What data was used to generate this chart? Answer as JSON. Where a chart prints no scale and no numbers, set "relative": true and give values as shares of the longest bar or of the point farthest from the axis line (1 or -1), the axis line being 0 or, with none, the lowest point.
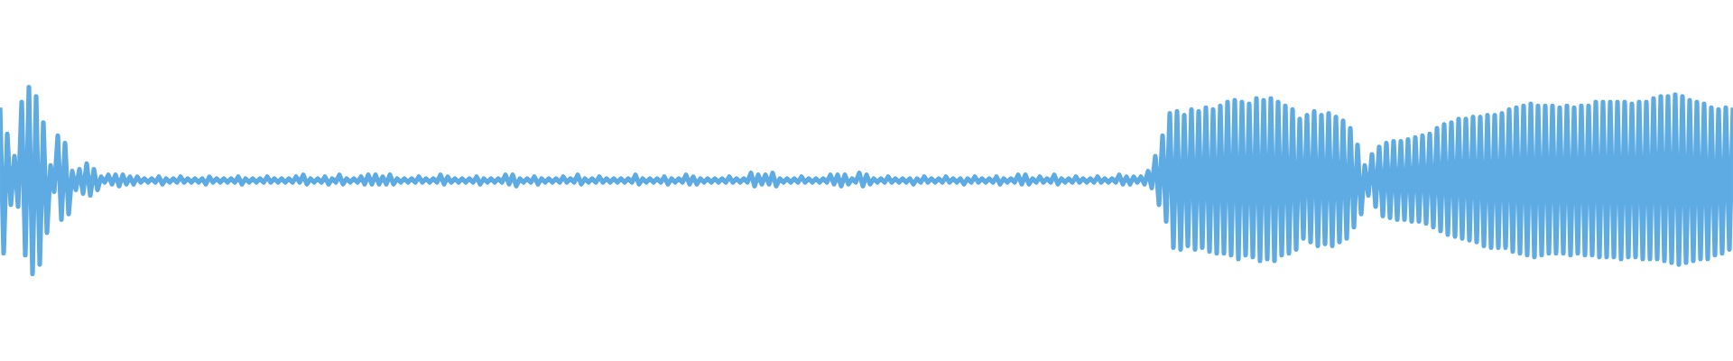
{
  "chart_data": {
    "type": "line",
    "relative": true,
    "categories": [
      null,
      null,
      null,
      null,
      null,
      null,
      null,
      null,
      null,
      null,
      null,
      null,
      null,
      null,
      null,
      null,
      null,
      null,
      null,
      null,
      null,
      null,
      null,
      null,
      null,
      null,
      null,
      null,
      null,
      null,
      null,
      null,
      null,
      null,
      null,
      null,
      null,
      null,
      null,
      null,
      null,
      null,
      null,
      null,
      null,
      null,
      null,
      null,
      null,
      null,
      null,
      null,
      null,
      null,
      null,
      null,
      null,
      null,
      null,
      null,
      null,
      null,
      null,
      null,
      null,
      null,
      null,
      null,
      null,
      null,
      null,
      null,
      null,
      null,
      null,
      null,
      null,
      null,
      null,
      null,
      null,
      null,
      null,
      null,
      null,
      null,
      null,
      null,
      null,
      null,
      null,
      null,
      null,
      null,
      null,
      null,
      null,
      null,
      null,
      null,
      null,
      null,
      null,
      null,
      null,
      null,
      null,
      null,
      null,
      null,
      null,
      null,
      null,
      null,
      null,
      null,
      null,
      null,
      null,
      null,
      null,
      null,
      null,
      null,
      null,
      null,
      null,
      null,
      null,
      null,
      null,
      null,
      null,
      null,
      null,
      null,
      null,
      null,
      null,
      null,
      null,
      null,
      null,
      null,
      null,
      null,
      null,
      null,
      null,
      null,
      null,
      null,
      null,
      null,
      null,
      null,
      null,
      null,
      null,
      null,
      null,
      null,
      null,
      null,
      null,
      null,
      null,
      null,
      null,
      null,
      null,
      null,
      null,
      null,
      null,
      null,
      null,
      null,
      null,
      null,
      null,
      null,
      null,
      null,
      null,
      null,
      null,
      null,
      null,
      null,
      null,
      null,
      null,
      null,
      null,
      null,
      null,
      null,
      null,
      null,
      null,
      null,
      null,
      null,
      null,
      null,
      null,
      null,
      null,
      null,
      null,
      null,
      null,
      null,
      null,
      null,
      null,
      null,
      null,
      null,
      null,
      null,
      null,
      null,
      null,
      null,
      null,
      null,
      null,
      null,
      null,
      null,
      null,
      null,
      null,
      null,
      null,
      null,
      null,
      null,
      null,
      null,
      null,
      null,
      null,
      null,
      null,
      null,
      null,
      null,
      null,
      null,
      null,
      null,
      null,
      null,
      null,
      null,
      null,
      null,
      null,
      null,
      null,
      null,
      null,
      null,
      null,
      null,
      null,
      null,
      null,
      null,
      null,
      null,
      null,
      null,
      null,
      null,
      null,
      null,
      null,
      null,
      null,
      null,
      null,
      null,
      null,
      null,
      null,
      null,
      null,
      null,
      null,
      null,
      null,
      null,
      null,
      null,
      null,
      null,
      null,
      null,
      null,
      null,
      null,
      null,
      null,
      null,
      null,
      null,
      null,
      null,
      null,
      null,
      null,
      null,
      null,
      null,
      null,
      null,
      null,
      null,
      null,
      null,
      null,
      null,
      null,
      null,
      null,
      null,
      null,
      null,
      null,
      null,
      null,
      null,
      null,
      null,
      null,
      null,
      null,
      null,
      null,
      null,
      null,
      null,
      null,
      null,
      null,
      null,
      null,
      null,
      null,
      null,
      null,
      null,
      null,
      null,
      null,
      null,
      null,
      null,
      null,
      null,
      null,
      null,
      null,
      null,
      null,
      null,
      null,
      null,
      null,
      null,
      null,
      null,
      null,
      null,
      null,
      null,
      null,
      null,
      null,
      null,
      null,
      null,
      null,
      null,
      null,
      null,
      null,
      null,
      null,
      null,
      null,
      null,
      null,
      null,
      null,
      null,
      null,
      null,
      null,
      null,
      null,
      null,
      null,
      null,
      null,
      null,
      null,
      null,
      null,
      null,
      null,
      null,
      null,
      null,
      null,
      null,
      null,
      null,
      null,
      null,
      null,
      null,
      null,
      null,
      null,
      null,
      null,
      null,
      null,
      null,
      null,
      null,
      null,
      null,
      null,
      null,
      null,
      null,
      null,
      null,
      null,
      null,
      null,
      null,
      null,
      null,
      null,
      null,
      null,
      null,
      null,
      null,
      null,
      null,
      null,
      null,
      null,
      null,
      null,
      null,
      null,
      null,
      null,
      null,
      null,
      null,
      null,
      null,
      null,
      null,
      null,
      null,
      null,
      null,
      null,
      null,
      null
    ],
    "series": [
      {
        "color": "#5dabe2",
        "values": [
          0.89,
          0.11,
          0.75,
          0.37,
          0.63,
          0.36,
          0.92,
          0.1,
          1,
          0,
          0.95,
          0.05,
          0.81,
          0.22,
          0.58,
          0.44,
          0.74,
          0.29,
          0.7,
          0.32,
          0.55,
          0.45,
          0.56,
          0.43,
          0.59,
          0.42,
          0.56,
          0.45,
          0.52,
          0.49,
          0.53,
          0.48,
          0.53,
          0.47,
          0.53,
          0.48,
          0.52,
          0.48,
          0.52,
          0.49,
          0.51,
          0.49,
          0.51,
          0.49,
          0.52,
          0.48,
          0.51,
          0.49,
          0.51,
          0.49,
          0.52,
          0.49,
          0.51,
          0.49,
          0.51,
          0.49,
          0.51,
          0.48,
          0.52,
          0.49,
          0.51,
          0.49,
          0.51,
          0.49,
          0.51,
          0.49,
          0.52,
          0.48,
          0.51,
          0.49,
          0.51,
          0.49,
          0.51,
          0.49,
          0.52,
          0.49,
          0.51,
          0.49,
          0.51,
          0.49,
          0.51,
          0.49,
          0.52,
          0.49,
          0.53,
          0.48,
          0.51,
          0.49,
          0.51,
          0.49,
          0.52,
          0.48,
          0.51,
          0.49,
          0.53,
          0.48,
          0.51,
          0.49,
          0.51,
          0.49,
          0.52,
          0.48,
          0.53,
          0.48,
          0.53,
          0.48,
          0.52,
          0.48,
          0.53,
          0.48,
          0.51,
          0.49,
          0.51,
          0.49,
          0.51,
          0.49,
          0.52,
          0.49,
          0.51,
          0.49,
          0.51,
          0.49,
          0.53,
          0.48,
          0.52,
          0.49,
          0.51,
          0.49,
          0.51,
          0.49,
          0.51,
          0.49,
          0.52,
          0.48,
          0.51,
          0.49,
          0.51,
          0.49,
          0.51,
          0.49,
          0.53,
          0.48,
          0.53,
          0.47,
          0.51,
          0.49,
          0.51,
          0.49,
          0.52,
          0.48,
          0.51,
          0.49,
          0.51,
          0.49,
          0.51,
          0.49,
          0.52,
          0.49,
          0.51,
          0.49,
          0.53,
          0.48,
          0.51,
          0.49,
          0.51,
          0.49,
          0.52,
          0.49,
          0.51,
          0.49,
          0.51,
          0.49,
          0.51,
          0.49,
          0.51,
          0.49,
          0.53,
          0.48,
          0.51,
          0.49,
          0.51,
          0.49,
          0.51,
          0.49,
          0.52,
          0.48,
          0.51,
          0.49,
          0.51,
          0.49,
          0.53,
          0.48,
          0.52,
          0.48,
          0.51,
          0.49,
          0.51,
          0.49,
          0.51,
          0.49,
          0.51,
          0.49,
          0.52,
          0.49,
          0.51,
          0.49,
          0.51,
          0.49,
          0.54,
          0.47,
          0.53,
          0.48,
          0.53,
          0.48,
          0.54,
          0.47,
          0.51,
          0.49,
          0.51,
          0.49,
          0.51,
          0.49,
          0.52,
          0.49,
          0.51,
          0.49,
          0.51,
          0.49,
          0.51,
          0.49,
          0.53,
          0.48,
          0.53,
          0.47,
          0.53,
          0.48,
          0.51,
          0.49,
          0.54,
          0.47,
          0.53,
          0.48,
          0.51,
          0.49,
          0.51,
          0.49,
          0.52,
          0.49,
          0.51,
          0.49,
          0.51,
          0.49,
          0.51,
          0.48,
          0.51,
          0.49,
          0.52,
          0.49,
          0.51,
          0.49,
          0.51,
          0.49,
          0.52,
          0.49,
          0.51,
          0.49,
          0.51,
          0.48,
          0.51,
          0.49,
          0.52,
          0.49,
          0.51,
          0.49,
          0.51,
          0.49,
          0.52,
          0.48,
          0.51,
          0.49,
          0.51,
          0.49,
          0.53,
          0.48,
          0.53,
          0.48,
          0.51,
          0.49,
          0.52,
          0.49,
          0.51,
          0.49,
          0.53,
          0.48,
          0.51,
          0.49,
          0.51,
          0.49,
          0.52,
          0.49,
          0.51,
          0.49,
          0.51,
          0.49,
          0.52,
          0.49,
          0.51,
          0.49,
          0.51,
          0.49,
          0.53,
          0.48,
          0.52,
          0.48,
          0.52,
          0.49,
          0.52,
          0.48,
          0.55,
          0.46,
          0.63,
          0.37,
          0.74,
          0.28,
          0.86,
          0.14,
          0.87,
          0.13,
          0.85,
          0.15,
          0.88,
          0.13,
          0.87,
          0.14,
          0.89,
          0.12,
          0.88,
          0.11,
          0.9,
          0.11,
          0.92,
          0.1,
          0.93,
          0.08,
          0.92,
          0.1,
          0.91,
          0.09,
          0.94,
          0.07,
          0.93,
          0.08,
          0.94,
          0.07,
          0.92,
          0.1,
          0.9,
          0.11,
          0.88,
          0.13,
          0.83,
          0.19,
          0.85,
          0.17,
          0.87,
          0.15,
          0.85,
          0.16,
          0.86,
          0.15,
          0.84,
          0.17,
          0.82,
          0.19,
          0.78,
          0.25,
          0.69,
          0.32,
          0.58,
          0.42,
          0.64,
          0.36,
          0.68,
          0.31,
          0.7,
          0.3,
          0.71,
          0.29,
          0.71,
          0.29,
          0.72,
          0.28,
          0.73,
          0.28,
          0.74,
          0.27,
          0.75,
          0.25,
          0.78,
          0.23,
          0.8,
          0.21,
          0.81,
          0.2,
          0.83,
          0.19,
          0.83,
          0.18,
          0.84,
          0.17,
          0.84,
          0.15,
          0.85,
          0.14,
          0.85,
          0.14,
          0.86,
          0.14,
          0.88,
          0.12,
          0.89,
          0.11,
          0.9,
          0.1,
          0.91,
          0.09,
          0.9,
          0.1,
          0.9,
          0.11,
          0.9,
          0.11,
          0.89,
          0.11,
          0.9,
          0.1,
          0.89,
          0.11,
          0.9,
          0.1,
          0.9,
          0.1,
          0.92,
          0.09,
          0.92,
          0.09,
          0.92,
          0.09,
          0.92,
          0.08,
          0.92,
          0.09,
          0.91,
          0.09,
          0.92,
          0.08,
          0.92,
          0.08,
          0.94,
          0.08,
          0.95,
          0.07,
          0.95,
          0.06,
          0.96,
          0.05,
          0.95,
          0.06,
          0.93,
          0.07,
          0.92,
          0.08,
          0.91,
          0.08,
          0.89,
          0.1,
          0.88,
          0.11,
          0.89,
          0.13,
          0.89
        ]
      }
    ]
  }
}
